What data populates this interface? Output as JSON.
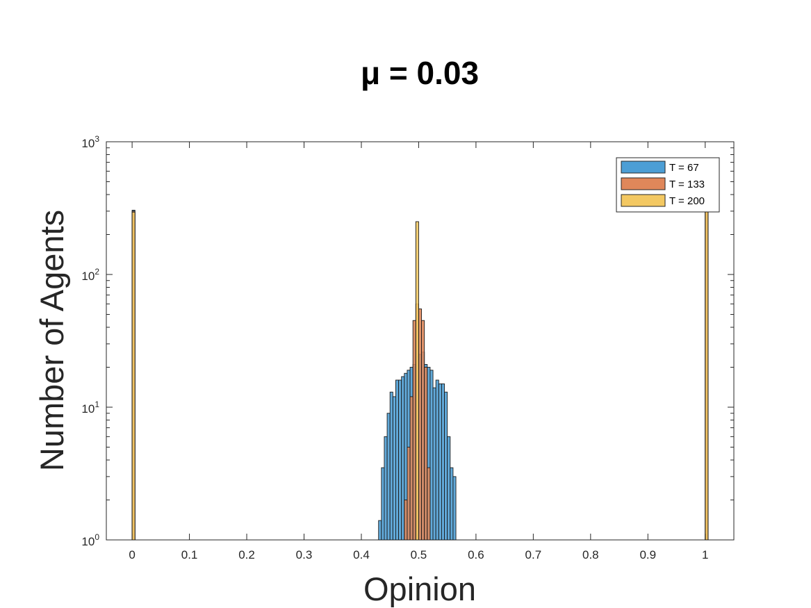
{
  "chart_data": {
    "type": "bar",
    "title": "μ = 0.03",
    "xlabel": "Opinion",
    "ylabel": "Number of Agents",
    "xlim": [
      -0.045,
      1.05
    ],
    "ylim": [
      1,
      1000
    ],
    "yscale": "log",
    "bin_width": 0.005,
    "xticks": [
      "0",
      "0.1",
      "0.2",
      "0.3",
      "0.4",
      "0.5",
      "0.6",
      "0.7",
      "0.8",
      "0.9",
      "1"
    ],
    "yticks": [
      {
        "base": "10",
        "exp": "0"
      },
      {
        "base": "10",
        "exp": "1"
      },
      {
        "base": "10",
        "exp": "2"
      },
      {
        "base": "10",
        "exp": "3"
      }
    ],
    "legend_position": "top-right",
    "series": [
      {
        "name": "T = 67",
        "color": "#4c9ed5",
        "x": [
          0.0025,
          0.4325,
          0.4375,
          0.4425,
          0.4475,
          0.4525,
          0.4575,
          0.4625,
          0.4675,
          0.4725,
          0.4775,
          0.4825,
          0.4875,
          0.4925,
          0.4975,
          0.5025,
          0.5075,
          0.5125,
          0.5175,
          0.5225,
          0.5275,
          0.5325,
          0.5375,
          0.5425,
          0.5475,
          0.5525,
          0.5575,
          0.5625,
          0.5725,
          1.0025
        ],
        "values": [
          305,
          1.4,
          3.5,
          6.0,
          9.0,
          13.0,
          12.0,
          16.0,
          16.0,
          17.0,
          18.0,
          19.0,
          20.0,
          21.0,
          24.0,
          25.0,
          26.0,
          21.0,
          20.0,
          19.0,
          14.0,
          16.0,
          15.0,
          15.0,
          13.0,
          6.0,
          3.5,
          3.0,
          1.0,
          340
        ]
      },
      {
        "name": "T = 133",
        "color": "#e0875a",
        "x": [
          0.0025,
          0.4775,
          0.4825,
          0.4875,
          0.4925,
          0.4975,
          0.5025,
          0.5075,
          0.5125,
          0.5175,
          1.0025
        ],
        "values": [
          300,
          2.0,
          5.0,
          12.0,
          45.0,
          60.0,
          55.0,
          45.0,
          20.0,
          3.5,
          335
        ]
      },
      {
        "name": "T = 200",
        "color": "#f3c862",
        "x": [
          0.0025,
          0.4975,
          1.0025
        ],
        "values": [
          295,
          250,
          330
        ]
      }
    ]
  }
}
